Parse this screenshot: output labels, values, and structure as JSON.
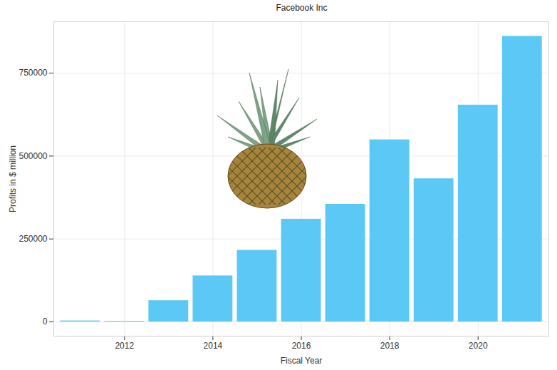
{
  "chart_data": {
    "type": "bar",
    "title": "Facebook Inc",
    "x_label": "Fiscal Year",
    "y_label": "Profits in $ million",
    "categories": [
      2011,
      2012,
      2013,
      2014,
      2015,
      2016,
      2017,
      2018,
      2019,
      2020,
      2021
    ],
    "values": [
      3000,
      2000,
      64100,
      138900,
      215800,
      309800,
      354700,
      549100,
      431600,
      653800,
      861100
    ],
    "color": "#5bc8f5",
    "xlim": [
      2010.4,
      2021.6
    ],
    "xticks": [
      2012,
      2014,
      2016,
      2018,
      2020
    ],
    "ylim": [
      -43000,
      905000
    ],
    "yticks": [
      0,
      250000,
      500000,
      750000
    ],
    "grid": true
  }
}
